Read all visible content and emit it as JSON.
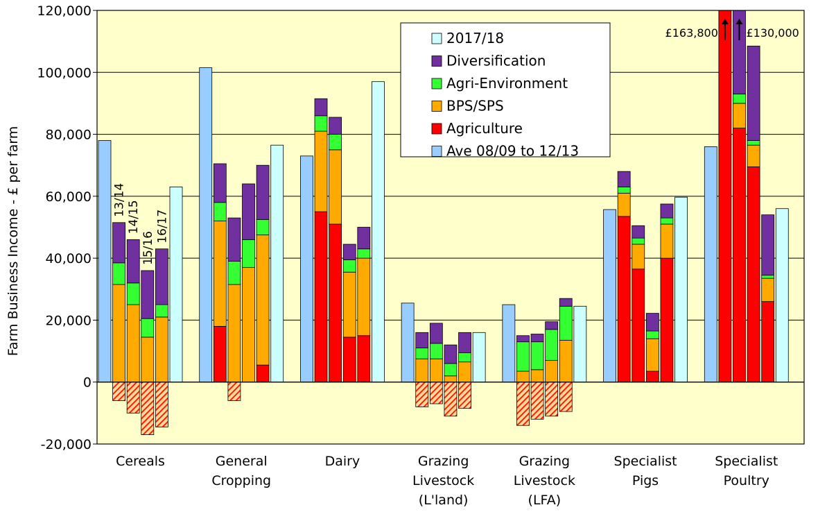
{
  "chart_data": {
    "type": "bar",
    "ylabel": "Farm Business Income - £ per farm",
    "ylim": [
      -20000,
      120000
    ],
    "yticks": [
      -20000,
      0,
      20000,
      40000,
      60000,
      80000,
      100000,
      120000
    ],
    "ytick_labels": [
      "-20,000",
      "0",
      "20,000",
      "40,000",
      "60,000",
      "80,000",
      "100,000",
      "120,000"
    ],
    "grid": true,
    "legend_position": "top-right",
    "colors": {
      "background": "#ffffcc",
      "ave": "#99ccff",
      "agriculture": "#ff0000",
      "bps": "#ffaa00",
      "agri_env": "#33ff33",
      "diversification": "#7030a0",
      "y2017": "#ccffff",
      "negative_hatch": "#ff3300"
    },
    "legend": [
      {
        "key": "y2017",
        "label": "2017/18"
      },
      {
        "key": "diversification",
        "label": "Diversification"
      },
      {
        "key": "agri_env",
        "label": "Agri-Environment"
      },
      {
        "key": "bps",
        "label": "BPS/SPS"
      },
      {
        "key": "agriculture",
        "label": "Agriculture"
      },
      {
        "key": "ave",
        "label": "Ave 08/09 to 12/13"
      }
    ],
    "year_labels": [
      "13/14",
      "14/15",
      "15/16",
      "16/17"
    ],
    "groups": [
      {
        "label": [
          "Cereals"
        ],
        "ave": 78000,
        "years": [
          {
            "agriculture": -6000,
            "bps": 31500,
            "agri_env": 7000,
            "diversification": 13000
          },
          {
            "agriculture": -10000,
            "bps": 25000,
            "agri_env": 7000,
            "diversification": 14000
          },
          {
            "agriculture": -17000,
            "bps": 14500,
            "agri_env": 6000,
            "diversification": 15500
          },
          {
            "agriculture": -14500,
            "bps": 21000,
            "agri_env": 4000,
            "diversification": 18000
          }
        ],
        "y2017": 63000
      },
      {
        "label": [
          "General",
          "Cropping"
        ],
        "ave": 101500,
        "years": [
          {
            "agriculture": 18000,
            "bps": 34000,
            "agri_env": 6000,
            "diversification": 12500
          },
          {
            "agriculture": -6000,
            "bps": 31500,
            "agri_env": 7500,
            "diversification": 14000
          },
          {
            "agriculture": 0,
            "bps": 37000,
            "agri_env": 9000,
            "diversification": 18000
          },
          {
            "agriculture": 5500,
            "bps": 42000,
            "agri_env": 5000,
            "diversification": 17500
          }
        ],
        "y2017": 76500
      },
      {
        "label": [
          "Dairy"
        ],
        "ave": 73000,
        "years": [
          {
            "agriculture": 55000,
            "bps": 26000,
            "agri_env": 5000,
            "diversification": 5500
          },
          {
            "agriculture": 51000,
            "bps": 24000,
            "agri_env": 5000,
            "diversification": 5500
          },
          {
            "agriculture": 14500,
            "bps": 21000,
            "agri_env": 4000,
            "diversification": 5000
          },
          {
            "agriculture": 15000,
            "bps": 25000,
            "agri_env": 3000,
            "diversification": 7000
          }
        ],
        "y2017": 97000
      },
      {
        "label": [
          "Grazing",
          "Livestock",
          "(L'land)"
        ],
        "ave": 25500,
        "years": [
          {
            "agriculture": -8000,
            "bps": 7500,
            "agri_env": 3500,
            "diversification": 5000
          },
          {
            "agriculture": -7000,
            "bps": 7500,
            "agri_env": 5000,
            "diversification": 6500
          },
          {
            "agriculture": -11000,
            "bps": 2000,
            "agri_env": 4000,
            "diversification": 6000
          },
          {
            "agriculture": -8500,
            "bps": 6500,
            "agri_env": 3000,
            "diversification": 6500
          }
        ],
        "y2017": 16000
      },
      {
        "label": [
          "Grazing",
          "Livestock",
          "(LFA)"
        ],
        "ave": 25000,
        "years": [
          {
            "agriculture": -14000,
            "bps": 3500,
            "agri_env": 9500,
            "diversification": 2000
          },
          {
            "agriculture": -12000,
            "bps": 4000,
            "agri_env": 9000,
            "diversification": 2500
          },
          {
            "agriculture": -11000,
            "bps": 7000,
            "agri_env": 10000,
            "diversification": 2500
          },
          {
            "agriculture": -9500,
            "bps": 13500,
            "agri_env": 11000,
            "diversification": 2500
          }
        ],
        "y2017": 24500
      },
      {
        "label": [
          "Specialist",
          "Pigs"
        ],
        "ave": 55700,
        "years": [
          {
            "agriculture": 53500,
            "bps": 7500,
            "agri_env": 2000,
            "diversification": 5000
          },
          {
            "agriculture": 36500,
            "bps": 8000,
            "agri_env": 2000,
            "diversification": 4000
          },
          {
            "agriculture": 3500,
            "bps": 10500,
            "agri_env": 2500,
            "diversification": 5700
          },
          {
            "agriculture": 40000,
            "bps": 11000,
            "agri_env": 2000,
            "diversification": 4500
          }
        ],
        "y2017": 59700
      },
      {
        "label": [
          "Specialist",
          "Poultry"
        ],
        "ave": 76000,
        "years": [
          {
            "agriculture": 163800,
            "bps": 0,
            "agri_env": 0,
            "diversification": 0
          },
          {
            "agriculture": 82000,
            "bps": 8000,
            "agri_env": 3000,
            "diversification": 37000
          },
          {
            "agriculture": 69500,
            "bps": 7000,
            "agri_env": 1500,
            "diversification": 30500
          },
          {
            "agriculture": 26000,
            "bps": 7500,
            "agri_env": 1000,
            "diversification": 19500
          }
        ],
        "y2017": 56000
      }
    ],
    "annotations": [
      {
        "text": "£163,800",
        "group": 6,
        "year": 0,
        "side": "left"
      },
      {
        "text": "£130,000",
        "group": 6,
        "year": 1,
        "side": "right"
      }
    ]
  }
}
